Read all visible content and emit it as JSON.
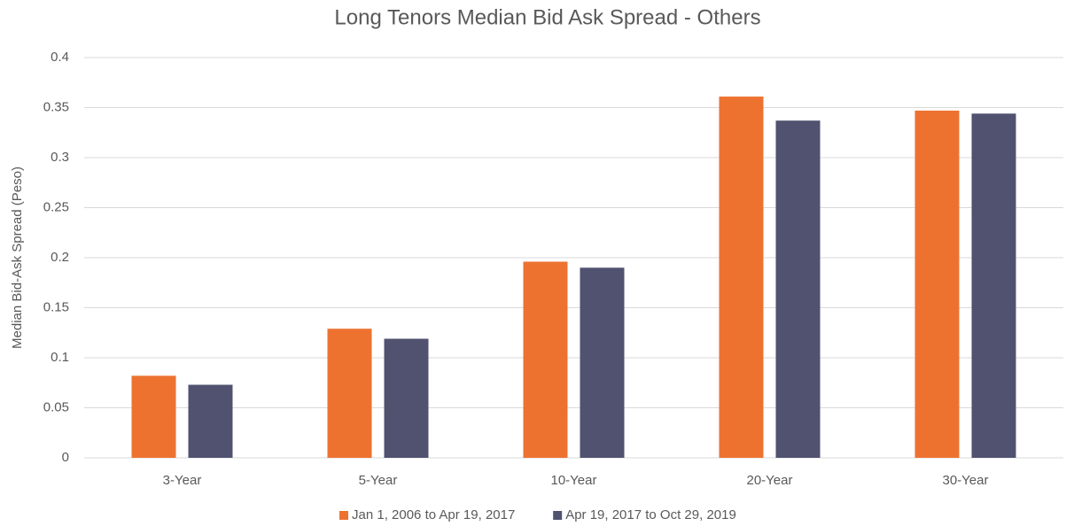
{
  "chart_data": {
    "type": "bar",
    "title": "Long Tenors Median Bid Ask Spread - Others",
    "y_label": "Median Bid-Ask Spread (Peso)",
    "categories": [
      "3-Year",
      "5-Year",
      "10-Year",
      "20-Year",
      "30-Year"
    ],
    "series": [
      {
        "name": "Jan 1, 2006 to Apr 19, 2017",
        "color": "#ED7230",
        "values": [
          0.082,
          0.129,
          0.196,
          0.361,
          0.347
        ]
      },
      {
        "name": "Apr 19, 2017 to Oct 29, 2019",
        "color": "#505270",
        "values": [
          0.073,
          0.119,
          0.19,
          0.337,
          0.344
        ]
      }
    ],
    "ylim": [
      0,
      0.4
    ],
    "yticks": [
      0,
      0.05,
      0.1,
      0.15,
      0.2,
      0.25,
      0.3,
      0.35,
      0.4
    ],
    "grid": true,
    "legend": "bottom"
  }
}
